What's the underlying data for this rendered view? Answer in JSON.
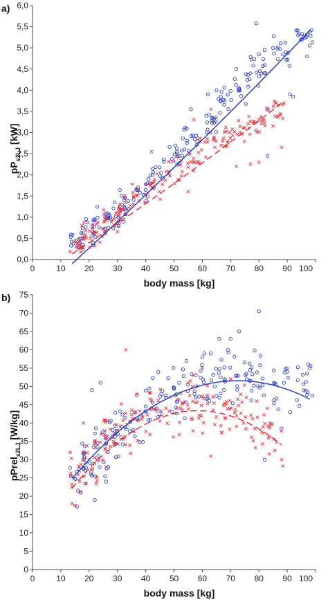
{
  "colors": {
    "boys": "#2b3fbf",
    "girls": "#e8313a",
    "axis": "#444444"
  },
  "chart_data": [
    {
      "type": "scatter",
      "panel_label": "a)",
      "xlabel": "body mass [kg]",
      "ylabel_main": "pP",
      "ylabel_sub": "s2LJ",
      "ylabel_unit": "[kW]",
      "xlim": [
        0,
        100
      ],
      "ylim": [
        0,
        6
      ],
      "x_ticks": [
        0,
        10,
        20,
        30,
        40,
        50,
        60,
        70,
        80,
        90,
        100
      ],
      "x_tick_labels": [
        "0",
        "10",
        "20",
        "30",
        "40",
        "50",
        "60",
        "70",
        "80",
        "90",
        "100"
      ],
      "y_ticks": [
        0,
        0.5,
        1,
        1.5,
        2,
        2.5,
        3,
        3.5,
        4,
        4.5,
        5,
        5.5,
        6
      ],
      "y_tick_labels": [
        "0,0",
        "0,5",
        "1,0",
        "1,5",
        "2,0",
        "2,5",
        "3,0",
        "3,5",
        "4,0",
        "4,5",
        "5,0",
        "5,5",
        "6,0"
      ],
      "series": [
        {
          "marker": "circle",
          "color": "#2b3fbf",
          "trend": {
            "style": "solid",
            "x_range": [
              14,
              98
            ],
            "poly": [
              -0.95,
              0.06,
              5e-05
            ]
          },
          "cluster_points": [
            [
              16,
              0.4
            ],
            [
              20,
              0.65
            ],
            [
              24,
              0.85
            ],
            [
              28,
              1.1
            ],
            [
              32,
              1.3
            ],
            [
              38,
              1.6
            ],
            [
              44,
              2.0
            ],
            [
              50,
              2.45
            ],
            [
              56,
              2.9
            ],
            [
              62,
              3.3
            ],
            [
              68,
              3.75
            ],
            [
              74,
              4.1
            ],
            [
              80,
              4.5
            ],
            [
              88,
              4.9
            ],
            [
              96,
              5.3
            ]
          ],
          "spread": 0.3,
          "points": [
            [
              79,
              5.58
            ],
            [
              98,
              5.38
            ],
            [
              97,
              5.32
            ],
            [
              85,
              5.0
            ],
            [
              82,
              4.95
            ],
            [
              80,
              4.85
            ],
            [
              72,
              4.5
            ],
            [
              77,
              4.4
            ],
            [
              65,
              4.0
            ],
            [
              62,
              3.9
            ],
            [
              56,
              3.55
            ],
            [
              91,
              3.9
            ],
            [
              92,
              3.85
            ],
            [
              83,
              3.55
            ],
            [
              79,
              3.05
            ],
            [
              83,
              2.45
            ],
            [
              97,
              4.8
            ]
          ]
        },
        {
          "marker": "cross",
          "color": "#e8313a",
          "trend": {
            "style": "dashed",
            "x_range": [
              14,
              88
            ],
            "poly": [
              -0.48,
              0.043,
              5e-05
            ]
          },
          "cluster_points": [
            [
              16,
              0.3
            ],
            [
              20,
              0.55
            ],
            [
              24,
              0.75
            ],
            [
              28,
              1.0
            ],
            [
              32,
              1.2
            ],
            [
              38,
              1.5
            ],
            [
              44,
              1.8
            ],
            [
              50,
              2.1
            ],
            [
              56,
              2.4
            ],
            [
              62,
              2.7
            ],
            [
              68,
              2.95
            ],
            [
              74,
              3.1
            ],
            [
              80,
              3.3
            ],
            [
              86,
              3.6
            ]
          ],
          "spread": 0.28,
          "points": [
            [
              88,
              2.65
            ],
            [
              63,
              3.55
            ],
            [
              72,
              2.2
            ],
            [
              77,
              2.25
            ],
            [
              80,
              2.3
            ],
            [
              85,
              3.15
            ],
            [
              57,
              3.3
            ],
            [
              55,
              1.6
            ],
            [
              42,
              2.55
            ]
          ]
        }
      ]
    },
    {
      "type": "scatter",
      "panel_label": "b)",
      "xlabel": "body mass [kg]",
      "ylabel_main": "pPrel",
      "ylabel_sub": "s2LJ",
      "ylabel_unit": "[W/kg]",
      "xlim": [
        0,
        100
      ],
      "ylim": [
        0,
        75
      ],
      "x_ticks": [
        0,
        10,
        20,
        30,
        40,
        50,
        60,
        70,
        80,
        90,
        100
      ],
      "x_tick_labels": [
        "0",
        "10",
        "20",
        "30",
        "40",
        "50",
        "60",
        "70",
        "80",
        "90",
        "100"
      ],
      "y_ticks": [
        0,
        5,
        10,
        15,
        20,
        25,
        30,
        35,
        40,
        45,
        50,
        55,
        60,
        65,
        70,
        75
      ],
      "y_tick_labels": [
        "0",
        "5",
        "10",
        "15",
        "20",
        "25",
        "30",
        "35",
        "40",
        "45",
        "50",
        "55",
        "60",
        "65",
        "70",
        "75"
      ],
      "series": [
        {
          "marker": "circle",
          "color": "#2b3fbf",
          "trend": {
            "style": "solid",
            "x_range": [
              14,
              98
            ],
            "poly": [
              10.48,
              1.132,
              -0.0078
            ]
          },
          "cluster_points": [
            [
              16,
              26
            ],
            [
              20,
              30
            ],
            [
              24,
              33
            ],
            [
              28,
              36
            ],
            [
              32,
              38
            ],
            [
              38,
              41.5
            ],
            [
              44,
              44.5
            ],
            [
              50,
              47
            ],
            [
              56,
              49
            ],
            [
              62,
              51
            ],
            [
              68,
              52
            ],
            [
              74,
              53
            ],
            [
              80,
              52.5
            ],
            [
              88,
              51
            ],
            [
              96,
              50
            ]
          ],
          "spread": 7,
          "points": [
            [
              80,
              70.5
            ],
            [
              73,
              65
            ],
            [
              70,
              63
            ],
            [
              66,
              63
            ],
            [
              69,
              60
            ],
            [
              98,
              55
            ],
            [
              97,
              53.5
            ],
            [
              91,
              43
            ],
            [
              88,
              38.5
            ],
            [
              82,
              30
            ],
            [
              24,
              51
            ],
            [
              21,
              49
            ],
            [
              17,
              21
            ],
            [
              22,
              19
            ],
            [
              26,
              24
            ],
            [
              60,
              58
            ],
            [
              63,
              59
            ]
          ]
        },
        {
          "marker": "cross",
          "color": "#e8313a",
          "trend": {
            "style": "dashed",
            "x_range": [
              14,
              88
            ],
            "poly": [
              6.79,
              1.251,
              -0.0107
            ]
          },
          "cluster_points": [
            [
              16,
              27
            ],
            [
              20,
              30
            ],
            [
              24,
              33
            ],
            [
              28,
              35.5
            ],
            [
              32,
              37.5
            ],
            [
              38,
              40
            ],
            [
              44,
              42
            ],
            [
              50,
              43
            ],
            [
              56,
              43.5
            ],
            [
              62,
              43.5
            ],
            [
              68,
              42.5
            ],
            [
              74,
              41
            ],
            [
              80,
              39
            ],
            [
              86,
              36
            ]
          ],
          "spread": 6.5,
          "points": [
            [
              33,
              60
            ],
            [
              88,
              30
            ],
            [
              14,
              18
            ],
            [
              15,
              17.5
            ],
            [
              18,
              40
            ],
            [
              55,
              51
            ],
            [
              57,
              53
            ],
            [
              60,
              55
            ],
            [
              63,
              31
            ],
            [
              70,
              52
            ],
            [
              83,
              44
            ]
          ]
        }
      ]
    }
  ]
}
